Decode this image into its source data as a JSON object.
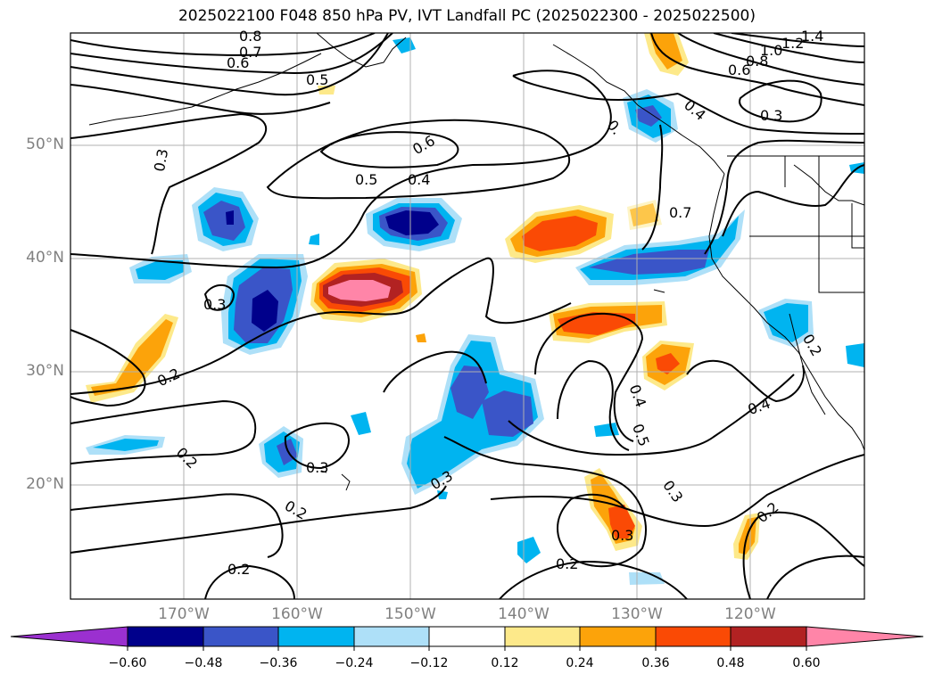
{
  "title": "2025022100 F048 850 hPa PV, IVT Landfall PC (2025022300 - 2025022500)",
  "lat_labels": [
    "50°N",
    "40°N",
    "30°N",
    "20°N"
  ],
  "lon_labels": [
    "170°W",
    "160°W",
    "150°W",
    "140°W",
    "130°W",
    "120°W"
  ],
  "colorbar": {
    "ticks": [
      "−0.60",
      "−0.48",
      "−0.36",
      "−0.24",
      "−0.12",
      "0.12",
      "0.24",
      "0.36",
      "0.48",
      "0.60"
    ],
    "colors": [
      "#9b30d0",
      "#00008b",
      "#3a55c8",
      "#00b4f0",
      "#aee0f8",
      "#ffffff",
      "#fde98a",
      "#fca30a",
      "#fa4a05",
      "#b22222",
      "#ff85a8"
    ]
  },
  "contour_labels": [
    "0.8",
    "0.7",
    "0.6",
    "0.5",
    "0.3",
    "0.5",
    "0.4",
    "0.6",
    "0.3",
    "0.2",
    "0.2",
    "0.3",
    "0.2",
    "0.2",
    "0.3",
    "0.4",
    "0.5",
    "0.3",
    "0.4",
    "0.2",
    "0.3",
    "0.2",
    "0.7",
    "0.4",
    "0.3",
    "1.4",
    "1.2",
    "1.0",
    "0.8",
    "0.6",
    "0.",
    "0.2"
  ],
  "chart_data": {
    "type": "map",
    "projection": "lat-lon",
    "extent": {
      "lon": [
        -180,
        -110
      ],
      "lat": [
        10,
        60
      ]
    },
    "grid": true,
    "fields": [
      "850 hPa PV (contours)",
      "IVT Landfall PC (shaded)"
    ],
    "shading_levels": [
      -0.6,
      -0.48,
      -0.36,
      -0.24,
      -0.12,
      0.12,
      0.24,
      0.36,
      0.48,
      0.6
    ]
  }
}
